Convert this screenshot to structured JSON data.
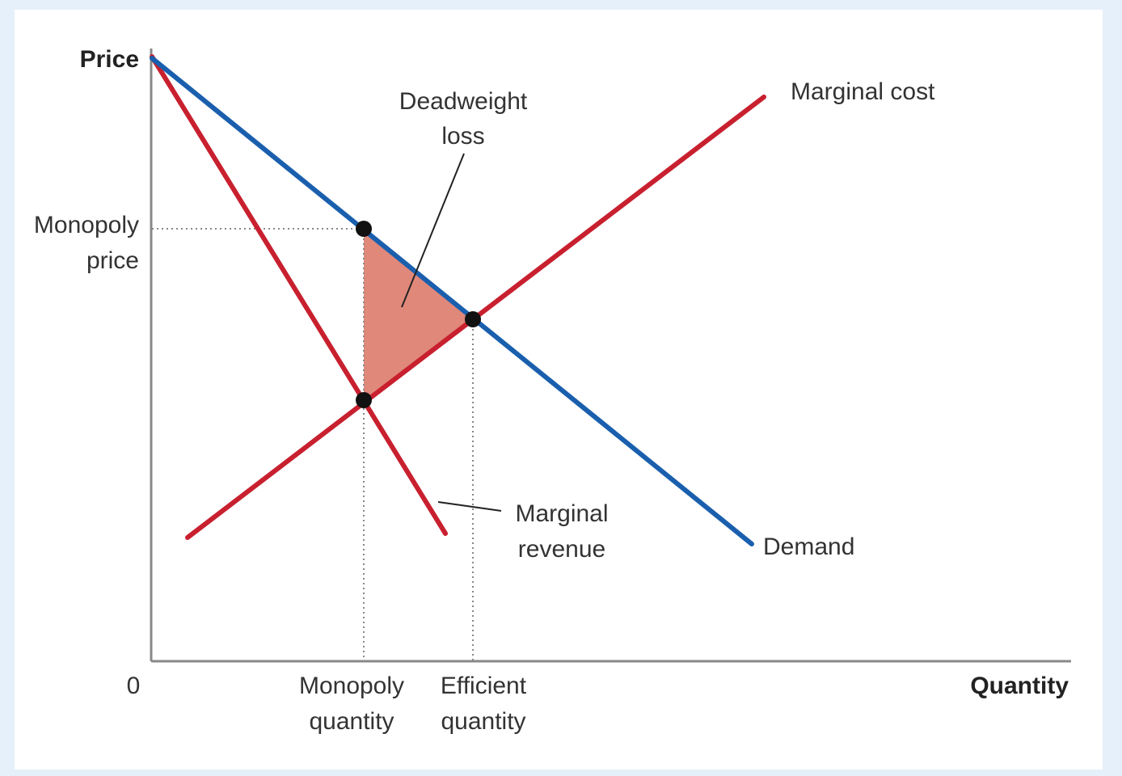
{
  "colors": {
    "background": "#e6f0fa",
    "panel": "#ffffff",
    "demand": "#1a5fad",
    "marginal_curves": "#c8202f",
    "deadweight_fill": "#e0887a",
    "axis": "#888888",
    "point": "#111111"
  },
  "axes": {
    "y_label": "Price",
    "x_label": "Quantity",
    "origin_label": "0"
  },
  "ticks": {
    "monopoly_price": [
      "Monopoly",
      "price"
    ],
    "monopoly_quantity": [
      "Monopoly",
      "quantity"
    ],
    "efficient_quantity": [
      "Efficient",
      "quantity"
    ]
  },
  "curves": {
    "marginal_cost": "Marginal cost",
    "demand": "Demand",
    "marginal_revenue": [
      "Marginal",
      "revenue"
    ]
  },
  "annotations": {
    "deadweight_loss": [
      "Deadweight",
      "loss"
    ]
  }
}
